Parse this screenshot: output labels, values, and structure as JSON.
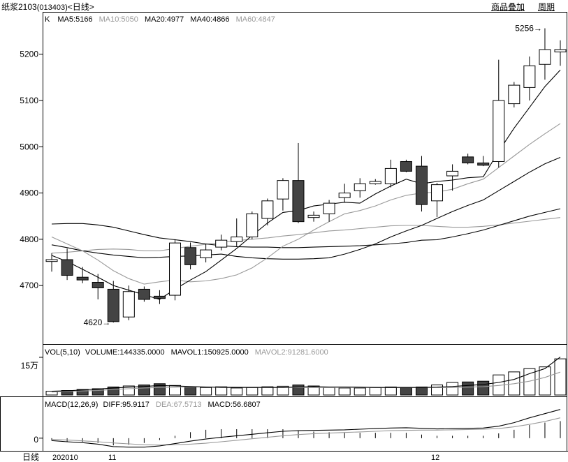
{
  "header": {
    "instrument": "纸浆2103",
    "code": "(013403)",
    "period_label": "<日线>",
    "overlay_button": "商品叠加",
    "cycle_button": "周期"
  },
  "price_panel": {
    "k_label": "K",
    "ma": [
      {
        "label": "MA5:5166",
        "color": "#000000"
      },
      {
        "label": "MA10:5050",
        "color": "#999999"
      },
      {
        "label": "MA20:4977",
        "color": "#000000"
      },
      {
        "label": "MA40:4866",
        "color": "#000000"
      },
      {
        "label": "MA60:4847",
        "color": "#999999"
      }
    ],
    "high_annotation": "5256→",
    "low_annotation": "4620→",
    "y_ticks": [
      "5200",
      "5100",
      "5000",
      "4900",
      "4800",
      "4700"
    ]
  },
  "volume_panel": {
    "labels": [
      {
        "label": "VOL(5,10)",
        "color": "#000000"
      },
      {
        "label": "VOLUME:144335.0000",
        "color": "#000000"
      },
      {
        "label": "MAVOL1:150925.0000",
        "color": "#000000"
      },
      {
        "label": "MAVOL2:91281.6000",
        "color": "#999999"
      }
    ],
    "y_tick": "15万"
  },
  "macd_panel": {
    "labels": [
      {
        "label": "MACD(12,26,9)",
        "color": "#000000"
      },
      {
        "label": "DIFF:95.9117",
        "color": "#000000"
      },
      {
        "label": "DEA:67.5713",
        "color": "#999999"
      },
      {
        "label": "MACD:56.6807",
        "color": "#000000"
      }
    ],
    "y_tick": "0"
  },
  "x_axis": {
    "corner_label": "日线",
    "labels": [
      "202010",
      "11",
      "12"
    ]
  },
  "colors": {
    "up": "#ffffff",
    "down": "#444444",
    "axis": "#000000",
    "grid": "#cccccc",
    "ma_light": "#999999"
  },
  "chart_data": {
    "type": "candlestick",
    "candles": [
      {
        "o": 4752,
        "c": 4756,
        "h": 4770,
        "l": 4730
      },
      {
        "o": 4756,
        "c": 4722,
        "h": 4780,
        "l": 4712
      },
      {
        "o": 4718,
        "c": 4712,
        "h": 4740,
        "l": 4705
      },
      {
        "o": 4707,
        "c": 4695,
        "h": 4725,
        "l": 4670
      },
      {
        "o": 4692,
        "c": 4622,
        "h": 4710,
        "l": 4620
      },
      {
        "o": 4632,
        "c": 4687,
        "h": 4700,
        "l": 4625
      },
      {
        "o": 4692,
        "c": 4670,
        "h": 4698,
        "l": 4665
      },
      {
        "o": 4677,
        "c": 4672,
        "h": 4690,
        "l": 4660
      },
      {
        "o": 4679,
        "c": 4792,
        "h": 4800,
        "l": 4668
      },
      {
        "o": 4782,
        "c": 4745,
        "h": 4793,
        "l": 4735
      },
      {
        "o": 4760,
        "c": 4777,
        "h": 4790,
        "l": 4750
      },
      {
        "o": 4783,
        "c": 4798,
        "h": 4810,
        "l": 4776
      },
      {
        "o": 4795,
        "c": 4805,
        "h": 4845,
        "l": 4785
      },
      {
        "o": 4805,
        "c": 4855,
        "h": 4860,
        "l": 4800
      },
      {
        "o": 4845,
        "c": 4883,
        "h": 4888,
        "l": 4830
      },
      {
        "o": 4887,
        "c": 4927,
        "h": 4932,
        "l": 4862
      },
      {
        "o": 4927,
        "c": 4838,
        "h": 5008,
        "l": 4835
      },
      {
        "o": 4847,
        "c": 4852,
        "h": 4860,
        "l": 4838
      },
      {
        "o": 4855,
        "c": 4878,
        "h": 4885,
        "l": 4838
      },
      {
        "o": 4890,
        "c": 4900,
        "h": 4920,
        "l": 4880
      },
      {
        "o": 4905,
        "c": 4920,
        "h": 4932,
        "l": 4890
      },
      {
        "o": 4920,
        "c": 4925,
        "h": 4930,
        "l": 4918
      },
      {
        "o": 4920,
        "c": 4953,
        "h": 4972,
        "l": 4912
      },
      {
        "o": 4968,
        "c": 4947,
        "h": 4972,
        "l": 4945
      },
      {
        "o": 4958,
        "c": 4875,
        "h": 4980,
        "l": 4860
      },
      {
        "o": 4883,
        "c": 4918,
        "h": 4922,
        "l": 4848
      },
      {
        "o": 4937,
        "c": 4947,
        "h": 4962,
        "l": 4905
      },
      {
        "o": 4978,
        "c": 4965,
        "h": 4985,
        "l": 4962
      },
      {
        "o": 4965,
        "c": 4960,
        "h": 4980,
        "l": 4958
      },
      {
        "o": 4968,
        "c": 5100,
        "h": 5188,
        "l": 4955
      },
      {
        "o": 5093,
        "c": 5133,
        "h": 5140,
        "l": 5085
      },
      {
        "o": 5128,
        "c": 5175,
        "h": 5195,
        "l": 5100
      },
      {
        "o": 5178,
        "c": 5210,
        "h": 5256,
        "l": 5145
      },
      {
        "o": 5205,
        "c": 5210,
        "h": 5230,
        "l": 5175
      }
    ],
    "ma5": [
      4765,
      4752,
      4735,
      4718,
      4700,
      4690,
      4680,
      4670,
      4692,
      4712,
      4730,
      4755,
      4780,
      4808,
      4835,
      4858,
      4862,
      4872,
      4876,
      4880,
      4878,
      4898,
      4915,
      4930,
      4920,
      4925,
      4928,
      4933,
      4935,
      4990,
      5040,
      5085,
      5130,
      5166
    ],
    "ma10": [
      4805,
      4790,
      4775,
      4755,
      4732,
      4715,
      4703,
      4708,
      4712,
      4708,
      4710,
      4715,
      4723,
      4738,
      4760,
      4785,
      4800,
      4820,
      4838,
      4855,
      4862,
      4872,
      4885,
      4895,
      4900,
      4902,
      4908,
      4920,
      4930,
      4955,
      4980,
      5005,
      5028,
      5050
    ],
    "ma20": [
      4788,
      4782,
      4775,
      4770,
      4766,
      4763,
      4760,
      4761,
      4763,
      4764,
      4766,
      4768,
      4763,
      4760,
      4758,
      4757,
      4757,
      4758,
      4760,
      4768,
      4778,
      4790,
      4805,
      4818,
      4830,
      4845,
      4860,
      4873,
      4885,
      4905,
      4925,
      4945,
      4963,
      4977
    ],
    "ma40": [
      4833,
      4834,
      4834,
      4831,
      4826,
      4818,
      4810,
      4803,
      4799,
      4795,
      4790,
      4786,
      4784,
      4783,
      4783,
      4782,
      4782,
      4783,
      4784,
      4785,
      4786,
      4788,
      4790,
      4793,
      4798,
      4799,
      4805,
      4812,
      4820,
      4830,
      4840,
      4850,
      4858,
      4866
    ],
    "ma60": [
      4770,
      4772,
      4775,
      4778,
      4779,
      4778,
      4775,
      4775,
      4780,
      4785,
      4789,
      4793,
      4797,
      4800,
      4803,
      4807,
      4810,
      4814,
      4818,
      4820,
      4823,
      4826,
      4829,
      4830,
      4830,
      4828,
      4826,
      4826,
      4828,
      4831,
      4835,
      4839,
      4843,
      4847
    ],
    "volume": [
      0.15,
      0.18,
      0.22,
      0.25,
      0.32,
      0.36,
      0.4,
      0.45,
      0.38,
      0.32,
      0.3,
      0.33,
      0.28,
      0.3,
      0.33,
      0.35,
      0.4,
      0.36,
      0.3,
      0.28,
      0.28,
      0.3,
      0.32,
      0.3,
      0.32,
      0.4,
      0.5,
      0.52,
      0.55,
      0.8,
      0.92,
      1.05,
      1.12,
      1.44
    ],
    "mavol1": [
      0.15,
      0.17,
      0.2,
      0.24,
      0.28,
      0.31,
      0.34,
      0.38,
      0.36,
      0.34,
      0.32,
      0.3,
      0.3,
      0.3,
      0.3,
      0.3,
      0.32,
      0.33,
      0.32,
      0.32,
      0.31,
      0.3,
      0.3,
      0.3,
      0.3,
      0.31,
      0.34,
      0.38,
      0.42,
      0.5,
      0.62,
      0.85,
      1.05,
      1.51
    ],
    "mavol2": [
      0.12,
      0.14,
      0.16,
      0.18,
      0.22,
      0.25,
      0.28,
      0.3,
      0.31,
      0.32,
      0.32,
      0.32,
      0.31,
      0.31,
      0.31,
      0.3,
      0.3,
      0.3,
      0.3,
      0.3,
      0.3,
      0.3,
      0.3,
      0.3,
      0.3,
      0.3,
      0.3,
      0.31,
      0.33,
      0.38,
      0.45,
      0.55,
      0.7,
      0.91
    ],
    "diff": [
      -8,
      -12,
      -15,
      -20,
      -28,
      -30,
      -30,
      -26,
      -18,
      -10,
      -3,
      3,
      8,
      13,
      18,
      23,
      25,
      26,
      27,
      28,
      30,
      32,
      34,
      35,
      33,
      31,
      32,
      33,
      34,
      40,
      52,
      68,
      82,
      96
    ],
    "dea": [
      -4,
      -6,
      -9,
      -12,
      -16,
      -19,
      -22,
      -23,
      -22,
      -20,
      -17,
      -12,
      -7,
      -2,
      3,
      8,
      12,
      15,
      17,
      19,
      21,
      23,
      25,
      26,
      27,
      27,
      28,
      29,
      30,
      32,
      38,
      46,
      56,
      68
    ],
    "macd": [
      -8,
      -12,
      -12,
      -16,
      -24,
      -22,
      -16,
      -6,
      8,
      20,
      28,
      30,
      30,
      30,
      30,
      30,
      26,
      22,
      20,
      18,
      18,
      18,
      18,
      18,
      12,
      8,
      8,
      8,
      8,
      16,
      28,
      44,
      52,
      57
    ],
    "price_range": [
      4575,
      5290
    ],
    "volume_max": 1.5,
    "macd_range": [
      -40,
      100
    ]
  }
}
